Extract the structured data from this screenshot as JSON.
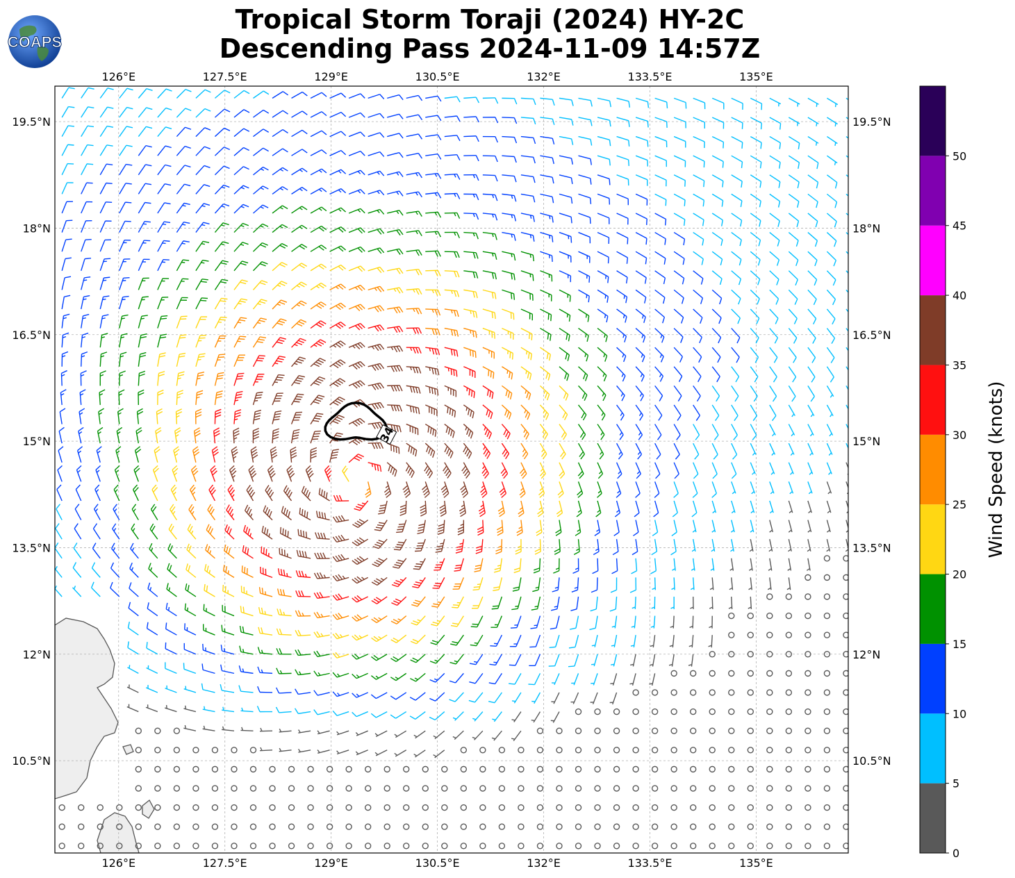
{
  "header": {
    "title_line1": "Tropical Storm Toraji (2024) HY-2C",
    "title_line2": "Descending Pass 2024-11-09 14:57Z",
    "logo_text": "COAPS"
  },
  "map": {
    "lon_range": [
      125.1,
      136.3
    ],
    "lat_range": [
      9.2,
      20.0
    ],
    "lon_ticks": [
      "126°E",
      "127.5°E",
      "129°E",
      "130.5°E",
      "132°E",
      "133.5°E",
      "135°E"
    ],
    "lat_ticks": [
      "19.5°N",
      "18°N",
      "16.5°N",
      "15°N",
      "13.5°N",
      "12°N",
      "10.5°N"
    ],
    "contour_label": "34",
    "storm_center": {
      "lon": 129.35,
      "lat": 14.45
    },
    "gridlines": true
  },
  "colorbar": {
    "label": "Wind Speed (knots)",
    "tick_labels": [
      "0",
      "5",
      "10",
      "15",
      "20",
      "25",
      "30",
      "35",
      "40",
      "45",
      "50"
    ],
    "bins": [
      {
        "min": 0,
        "max": 5,
        "color": "#595959"
      },
      {
        "min": 5,
        "max": 10,
        "color": "#00bfff"
      },
      {
        "min": 10,
        "max": 15,
        "color": "#0040ff"
      },
      {
        "min": 15,
        "max": 20,
        "color": "#009100"
      },
      {
        "min": 20,
        "max": 25,
        "color": "#ffd713"
      },
      {
        "min": 25,
        "max": 30,
        "color": "#ff8c00"
      },
      {
        "min": 30,
        "max": 35,
        "color": "#ff1010"
      },
      {
        "min": 35,
        "max": 40,
        "color": "#7f3c28"
      },
      {
        "min": 40,
        "max": 45,
        "color": "#ff00ff"
      },
      {
        "min": 45,
        "max": 50,
        "color": "#8000b0"
      },
      {
        "min": 50,
        "max": 55,
        "color": "#2a0058"
      }
    ]
  },
  "colors": {
    "land": "#eeeeee",
    "coast": "#555555",
    "grid": "#b0b0b0"
  }
}
